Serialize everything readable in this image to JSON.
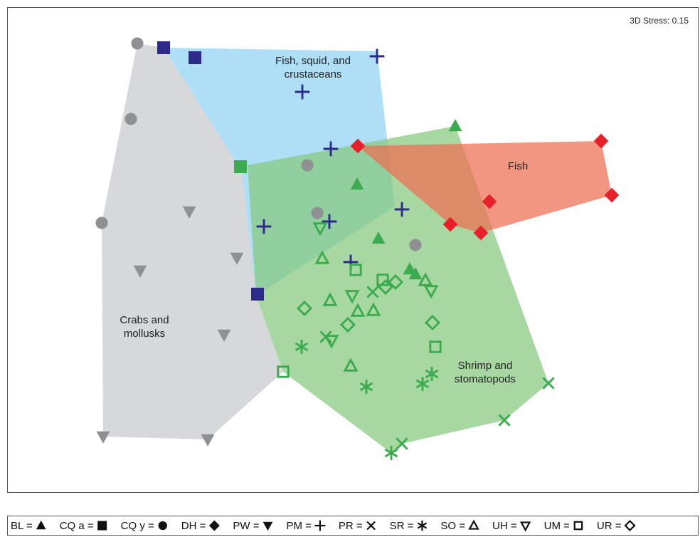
{
  "chart_data": {
    "type": "scatter",
    "stress_label": "3D Stress: 0.15",
    "groups": [
      {
        "label": "Fish, squid, and\ncrustaceans",
        "color": "#8fd3f4",
        "hull": [
          [
            230,
            67
          ],
          [
            530,
            72
          ],
          [
            555,
            290
          ],
          [
            360,
            415
          ],
          [
            340,
            240
          ]
        ]
      },
      {
        "label": "Fish",
        "color": "#c8c9ca",
        "hull": [
          [
            193,
            61
          ],
          [
            230,
            67
          ],
          [
            340,
            240
          ],
          [
            360,
            415
          ],
          [
            398,
            522
          ],
          [
            292,
            617
          ],
          [
            145,
            613
          ],
          [
            143,
            313
          ]
        ]
      },
      {
        "label": "Crabs and\nmollusks",
        "color": "#ef6d51",
        "hull": [
          [
            503,
            205
          ],
          [
            845,
            198
          ],
          [
            860,
            274
          ],
          [
            676,
            327
          ],
          [
            633,
            315
          ]
        ]
      },
      {
        "label": "Shrimp and\nstomatopods",
        "color": "#86c97d",
        "hull": [
          [
            348,
            232
          ],
          [
            640,
            177
          ],
          [
            771,
            538
          ],
          [
            709,
            590
          ],
          [
            565,
            623
          ],
          [
            550,
            636
          ],
          [
            398,
            522
          ],
          [
            360,
            415
          ]
        ]
      }
    ],
    "groups_draw_order": [
      1,
      0,
      3,
      2
    ],
    "label_positions": [
      [
        440,
        90,
        2
      ],
      [
        728,
        238,
        2
      ],
      [
        203,
        454,
        1
      ],
      [
        682,
        518,
        2
      ]
    ],
    "legend": [
      {
        "code": "BL",
        "symbol": "triangle-filled"
      },
      {
        "code": "CQ a",
        "symbol": "square-filled"
      },
      {
        "code": "CQ y",
        "symbol": "circle-filled"
      },
      {
        "code": "DH",
        "symbol": "diamond-filled"
      },
      {
        "code": "PW",
        "symbol": "triangle-down-filled"
      },
      {
        "code": "PM",
        "symbol": "plus"
      },
      {
        "code": "PR",
        "symbol": "x"
      },
      {
        "code": "SR",
        "symbol": "asterisk"
      },
      {
        "code": "SO",
        "symbol": "triangle-open"
      },
      {
        "code": "UH",
        "symbol": "triangle-down-open"
      },
      {
        "code": "UM",
        "symbol": "square-open"
      },
      {
        "code": "UR",
        "symbol": "diamond-open"
      }
    ],
    "colors": {
      "gray": "#8f9092",
      "navy": "#2d2a8c",
      "green": "#3cab4f",
      "red": "#e8202a"
    },
    "series": [
      {
        "code": "CQ y",
        "symbol": "circle-filled",
        "color": "gray",
        "points": [
          [
            193,
            61
          ],
          [
            184,
            167
          ],
          [
            143,
            313
          ],
          [
            432,
            232
          ],
          [
            446,
            299
          ],
          [
            584,
            344
          ]
        ]
      },
      {
        "code": "PW",
        "symbol": "triangle-down-filled",
        "color": "gray",
        "points": [
          [
            266,
            297
          ],
          [
            197,
            380
          ],
          [
            333,
            362
          ],
          [
            315,
            470
          ],
          [
            145,
            613
          ],
          [
            292,
            617
          ]
        ]
      },
      {
        "code": "CQ a",
        "symbol": "square-filled",
        "color": "navy",
        "points": [
          [
            230,
            67
          ],
          [
            274,
            81
          ],
          [
            362,
            413
          ]
        ]
      },
      {
        "code": "CQ a",
        "symbol": "square-filled",
        "color": "green",
        "points": [
          [
            338,
            234
          ]
        ]
      },
      {
        "code": "PM",
        "symbol": "plus",
        "color": "navy",
        "points": [
          [
            530,
            79
          ],
          [
            425,
            129
          ],
          [
            465,
            209
          ],
          [
            371,
            318
          ],
          [
            463,
            311
          ],
          [
            565,
            294
          ],
          [
            493,
            368
          ]
        ]
      },
      {
        "code": "BL",
        "symbol": "triangle-filled",
        "color": "green",
        "points": [
          [
            640,
            177
          ],
          [
            502,
            259
          ],
          [
            532,
            335
          ],
          [
            576,
            378
          ],
          [
            584,
            385
          ]
        ]
      },
      {
        "code": "DH",
        "symbol": "diamond-filled",
        "color": "red",
        "points": [
          [
            503,
            205
          ],
          [
            845,
            198
          ],
          [
            860,
            274
          ],
          [
            688,
            283
          ],
          [
            633,
            315
          ],
          [
            676,
            327
          ]
        ]
      },
      {
        "code": "SO",
        "symbol": "triangle-open",
        "color": "green",
        "points": [
          [
            453,
            363
          ],
          [
            464,
            422
          ],
          [
            503,
            437
          ],
          [
            525,
            436
          ],
          [
            598,
            394
          ],
          [
            493,
            514
          ]
        ]
      },
      {
        "code": "UH",
        "symbol": "triangle-down-open",
        "color": "green",
        "points": [
          [
            450,
            320
          ],
          [
            495,
            415
          ],
          [
            466,
            478
          ],
          [
            606,
            408
          ]
        ]
      },
      {
        "code": "UM",
        "symbol": "square-open",
        "color": "green",
        "points": [
          [
            500,
            379
          ],
          [
            538,
            393
          ],
          [
            612,
            487
          ],
          [
            398,
            522
          ]
        ]
      },
      {
        "code": "UR",
        "symbol": "diamond-open",
        "color": "green",
        "points": [
          [
            428,
            433
          ],
          [
            489,
            456
          ],
          [
            556,
            396
          ],
          [
            542,
            403
          ],
          [
            608,
            453
          ]
        ]
      },
      {
        "code": "PR",
        "symbol": "x",
        "color": "green",
        "points": [
          [
            524,
            410
          ],
          [
            458,
            473
          ],
          [
            771,
            538
          ],
          [
            709,
            590
          ],
          [
            565,
            623
          ]
        ]
      },
      {
        "code": "SR",
        "symbol": "asterisk",
        "color": "green",
        "points": [
          [
            424,
            487
          ],
          [
            515,
            543
          ],
          [
            594,
            539
          ],
          [
            607,
            525
          ],
          [
            550,
            636
          ]
        ]
      }
    ]
  }
}
